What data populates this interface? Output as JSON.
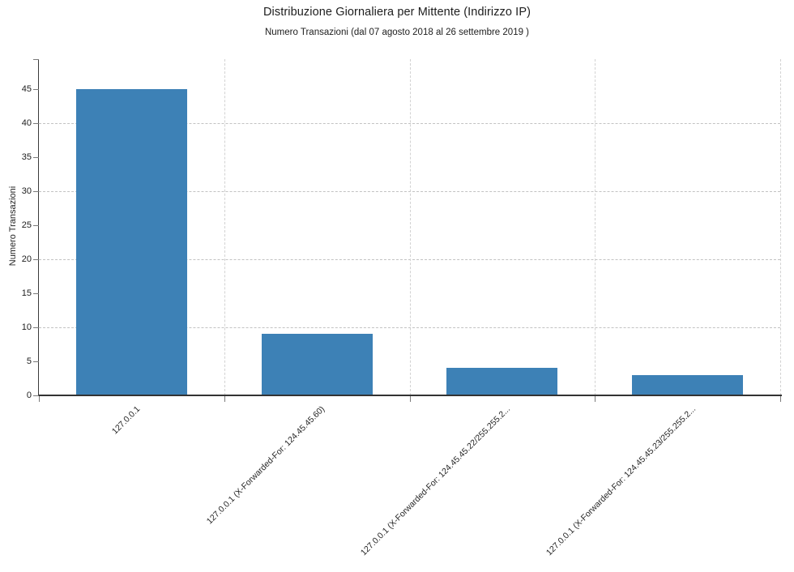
{
  "chart_data": {
    "type": "bar",
    "title": "Distribuzione Giornaliera per Mittente (Indirizzo IP)",
    "subtitle": "Numero Transazioni (dal 07 agosto 2018 al 26 settembre 2019 )",
    "ylabel": "Numero Transazioni",
    "xlabel": "",
    "categories": [
      "127.0.0.1",
      "127.0.0.1 (X-Forwarded-For: 124.45.45.60)",
      "127.0.0.1 (X-Forwarded-For: 124.45.45.22/255.255.2...",
      "127.0.0.1 (X-Forwarded-For: 124.45.45.23/255.255.2..."
    ],
    "values": [
      45,
      9,
      4,
      3
    ],
    "ylim": [
      0,
      49.4
    ],
    "yticks": [
      0,
      5,
      10,
      15,
      20,
      25,
      30,
      35,
      40,
      45
    ],
    "h_gridlines": [
      10,
      20,
      30,
      40
    ],
    "grid": "dashed",
    "legend_position": "none",
    "bar_color": "#3d81b6",
    "axis_color": "#333333",
    "tick_color": "#7a7a7a",
    "grid_color": "#c3c3c3",
    "text_color": "#1d1d1d"
  }
}
